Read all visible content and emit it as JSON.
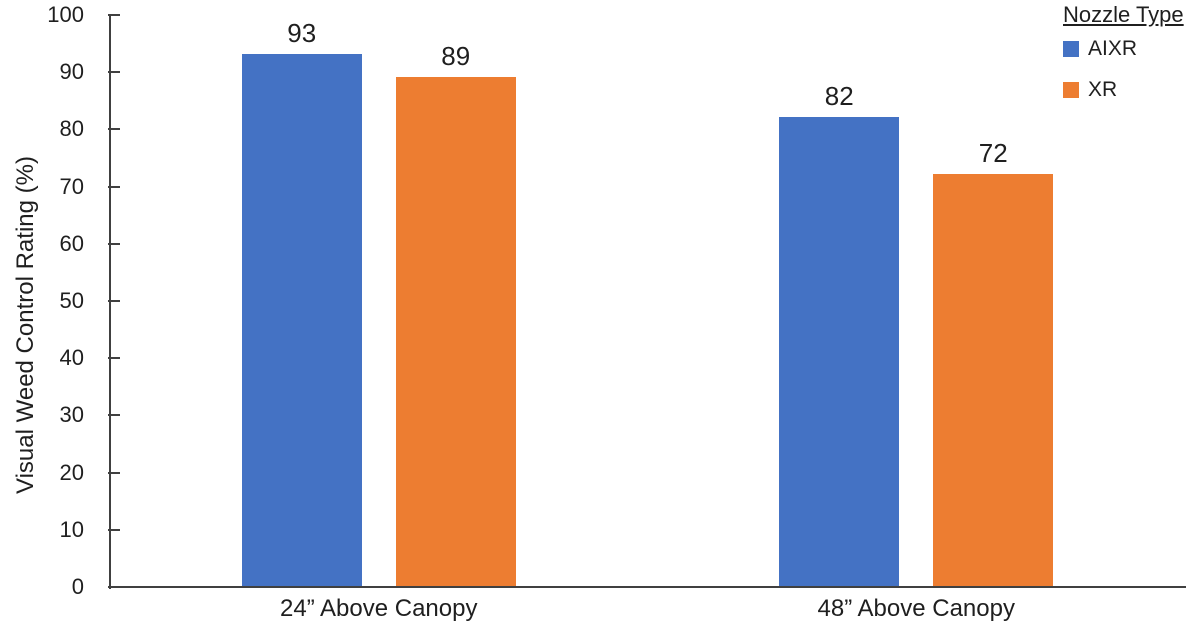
{
  "chart_data": {
    "type": "bar",
    "title": "",
    "categories": [
      "24” Above Canopy",
      "48” Above Canopy"
    ],
    "series": [
      {
        "name": "AIXR",
        "color": "#4472C4",
        "values": [
          93,
          82
        ],
        "labels": [
          "93",
          "82"
        ]
      },
      {
        "name": "XR",
        "color": "#ED7D31",
        "values": [
          89,
          72
        ],
        "labels": [
          "89",
          "72"
        ]
      }
    ],
    "xlabel": "",
    "ylabel": "Visual Weed Control Rating (%)",
    "ylim": [
      0,
      100
    ],
    "yticks": [
      0,
      10,
      20,
      30,
      40,
      50,
      60,
      70,
      80,
      90,
      100
    ],
    "grid": false,
    "data_labels": true,
    "legend": {
      "title": "Nozzle Type",
      "position": "top-right",
      "entries": [
        {
          "label": "AIXR",
          "color": "#4472C4"
        },
        {
          "label": "XR",
          "color": "#ED7D31"
        }
      ]
    }
  },
  "colors": {
    "axis": "#404040",
    "text": "#1f1f1f",
    "background": "#ffffff"
  }
}
